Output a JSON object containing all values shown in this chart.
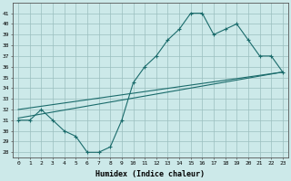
{
  "xlabel": "Humidex (Indice chaleur)",
  "ylabel": "",
  "bg_color": "#cce9e9",
  "line_color": "#1a6b6b",
  "grid_color": "#9bbfbf",
  "x_ticks": [
    0,
    1,
    2,
    3,
    4,
    5,
    6,
    7,
    8,
    9,
    10,
    11,
    12,
    13,
    14,
    15,
    16,
    17,
    18,
    19,
    20,
    21,
    22,
    23
  ],
  "y_ticks": [
    28,
    29,
    30,
    31,
    32,
    33,
    34,
    35,
    36,
    37,
    38,
    39,
    40,
    41
  ],
  "ylim": [
    27.5,
    42.0
  ],
  "xlim": [
    -0.5,
    23.5
  ],
  "series1_x": [
    0,
    1,
    2,
    3,
    4,
    5,
    6,
    7,
    8,
    9,
    10,
    11,
    12,
    13,
    14,
    15,
    16,
    17,
    18,
    19,
    20,
    21,
    22,
    23
  ],
  "series1_y": [
    31,
    31,
    32,
    31,
    30,
    29.5,
    28,
    28,
    28.5,
    31,
    34.5,
    36,
    37,
    38.5,
    39.5,
    41,
    41,
    39,
    39.5,
    40,
    38.5,
    37,
    37,
    35.5
  ],
  "series2_x": [
    0,
    23
  ],
  "series2_y": [
    31.2,
    35.5
  ],
  "series3_x": [
    0,
    23
  ],
  "series3_y": [
    32.0,
    35.5
  ]
}
